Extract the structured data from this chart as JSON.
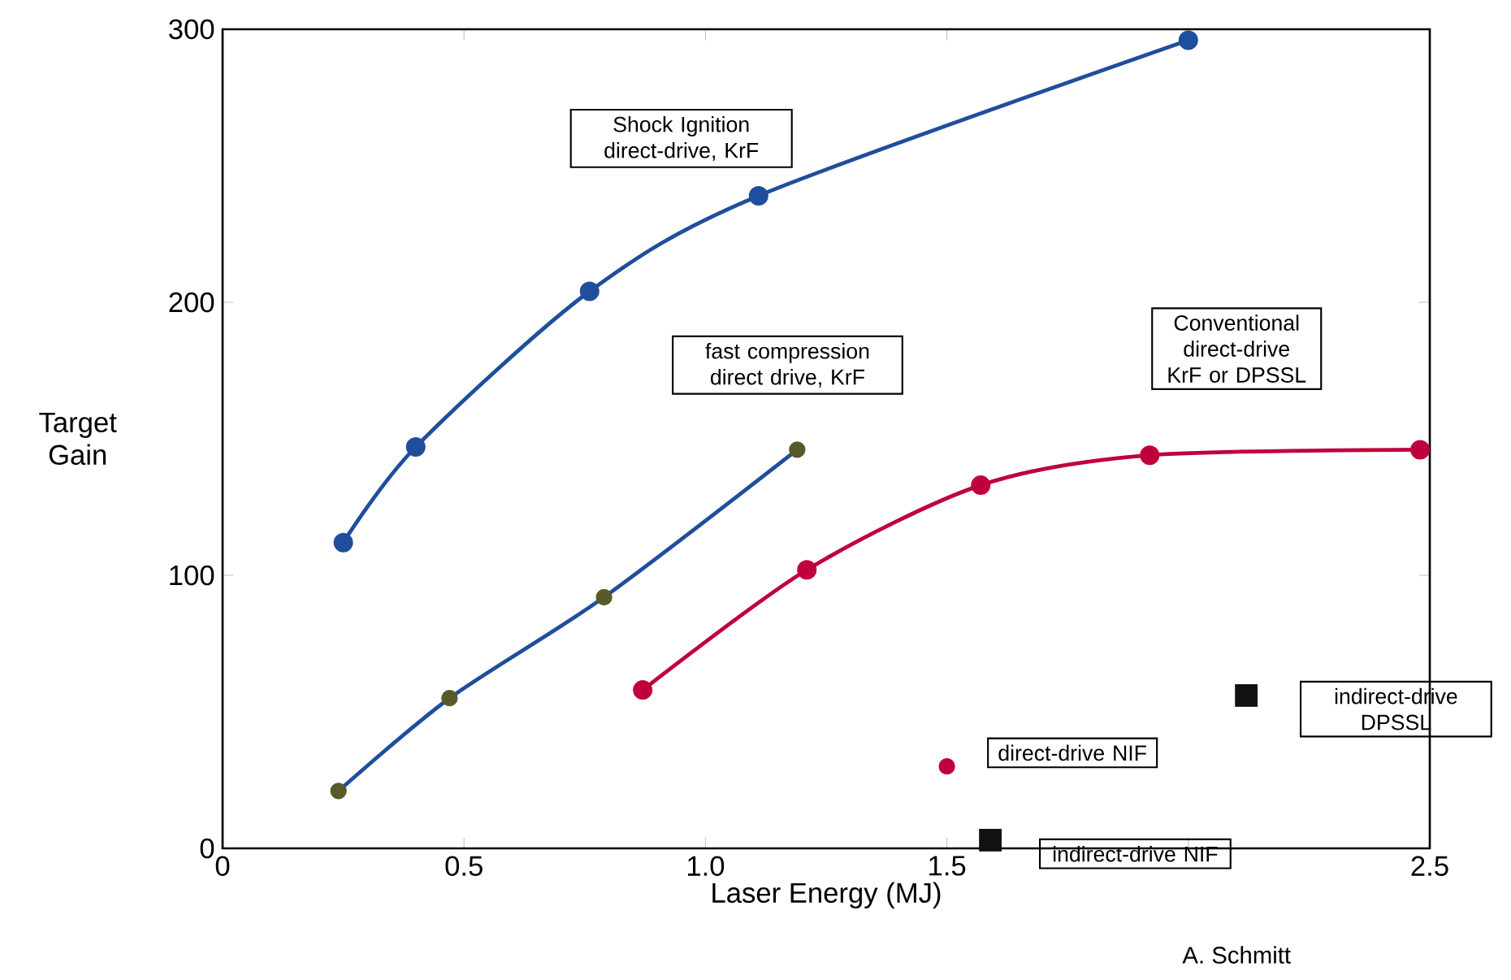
{
  "chart_data": {
    "type": "line",
    "xlabel": "Laser Energy (MJ)",
    "ylabel": "Target Gain",
    "xlim": [
      0,
      2.5
    ],
    "ylim": [
      0,
      300
    ],
    "xticks": [
      0,
      0.5,
      {
        "value": 1,
        "label": "1.0"
      },
      1.5,
      {
        "value": 2,
        "label": null
      },
      2.5
    ],
    "yticks": [
      0,
      100,
      200,
      300
    ],
    "series": [
      {
        "color": "#1f4e9c",
        "marker": "circle",
        "x": [
          0.25,
          0.4,
          0.76,
          1.11,
          2.0
        ],
        "values": [
          112,
          147,
          204,
          239,
          296
        ]
      },
      {
        "color": "#1f4e9c",
        "colors": [
          "#5a5a28",
          "#5a5a28",
          "#5a5a28",
          "#5a5a28"
        ],
        "marker": "circle",
        "x": [
          0.24,
          0.47,
          0.79,
          1.19
        ],
        "values": [
          21,
          55,
          92,
          146
        ]
      },
      {
        "color": "#c0003c",
        "marker": "circle",
        "x": [
          0.87,
          1.21,
          1.57,
          1.92,
          2.48
        ],
        "values": [
          58,
          102,
          133,
          144,
          146
        ]
      },
      {
        "type": "scatter",
        "color": "#c0003c",
        "marker": "circle",
        "x": [
          1.5
        ],
        "values": [
          30
        ]
      },
      {
        "type": "scatter",
        "color": "#111111",
        "marker": "square",
        "x": [
          1.59,
          2.12
        ],
        "values": [
          3,
          56
        ]
      }
    ],
    "annotations": [
      "Shock Ignition direct-drive, KrF",
      "fast compression direct drive, KrF",
      "Conventional direct-drive KrF or DPSSL",
      "direct-drive NIF",
      "indirect-drive NIF",
      "indirect-drive DPSSL",
      "A. Schmitt"
    ]
  }
}
